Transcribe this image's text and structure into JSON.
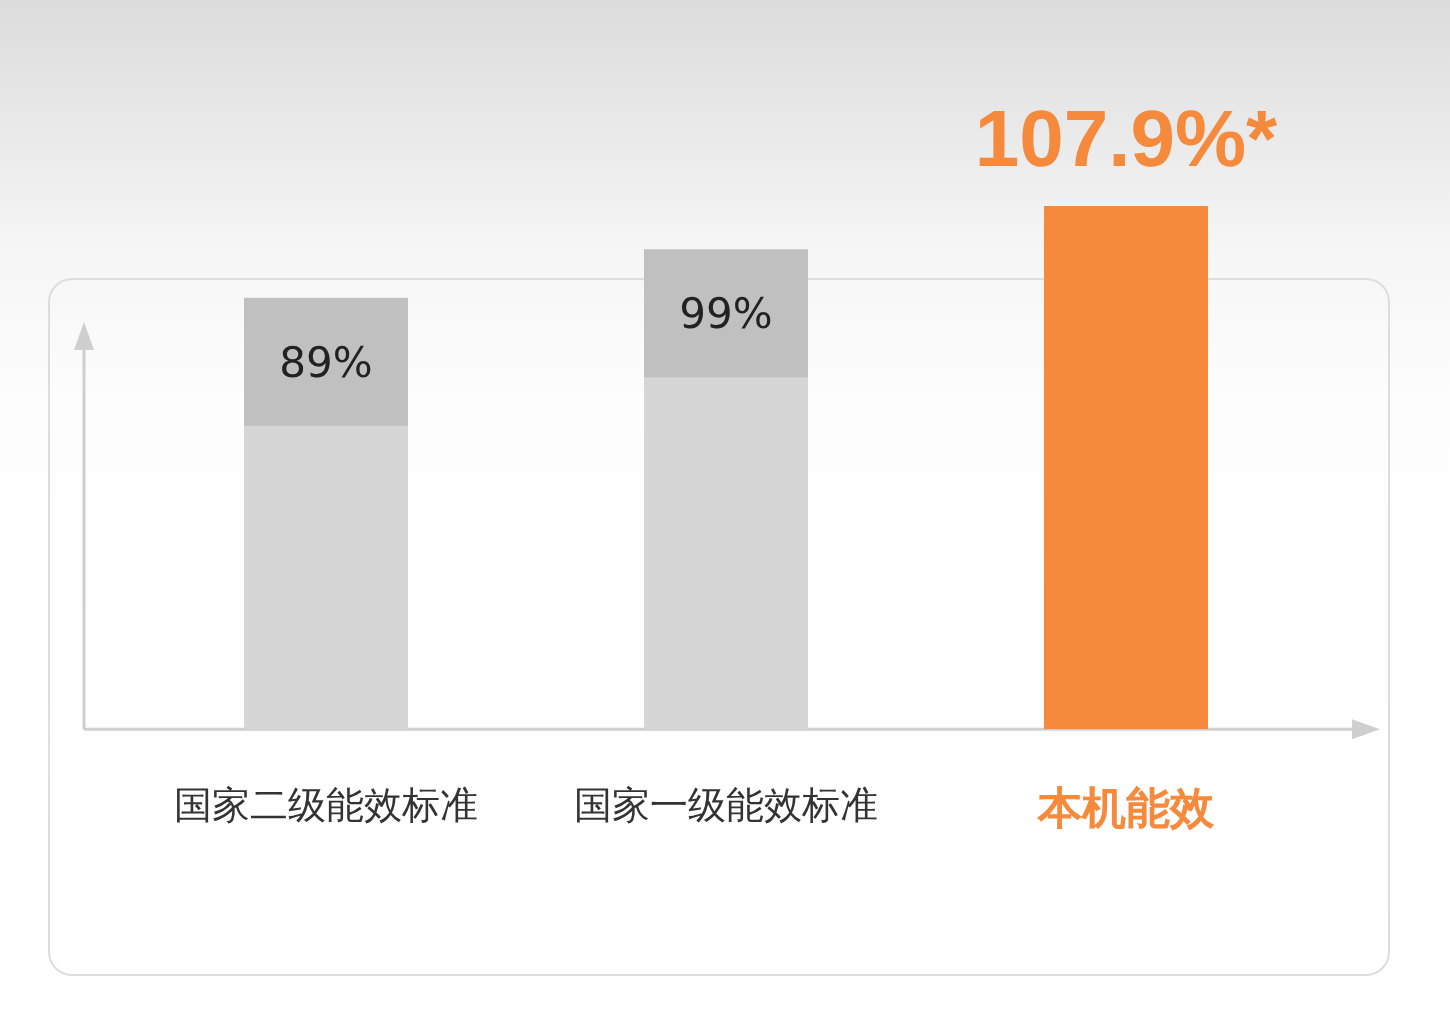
{
  "chart_data": {
    "type": "bar",
    "categories": [
      "国家二级能效标准",
      "国家一级能效标准",
      "本机能效"
    ],
    "values": [
      89,
      99,
      107.9
    ],
    "colors": [
      "#d6d6d6",
      "#d6d6d6",
      "#f58a3c"
    ],
    "value_labels": [
      "89%",
      "99%",
      "107.9%*"
    ]
  }
}
